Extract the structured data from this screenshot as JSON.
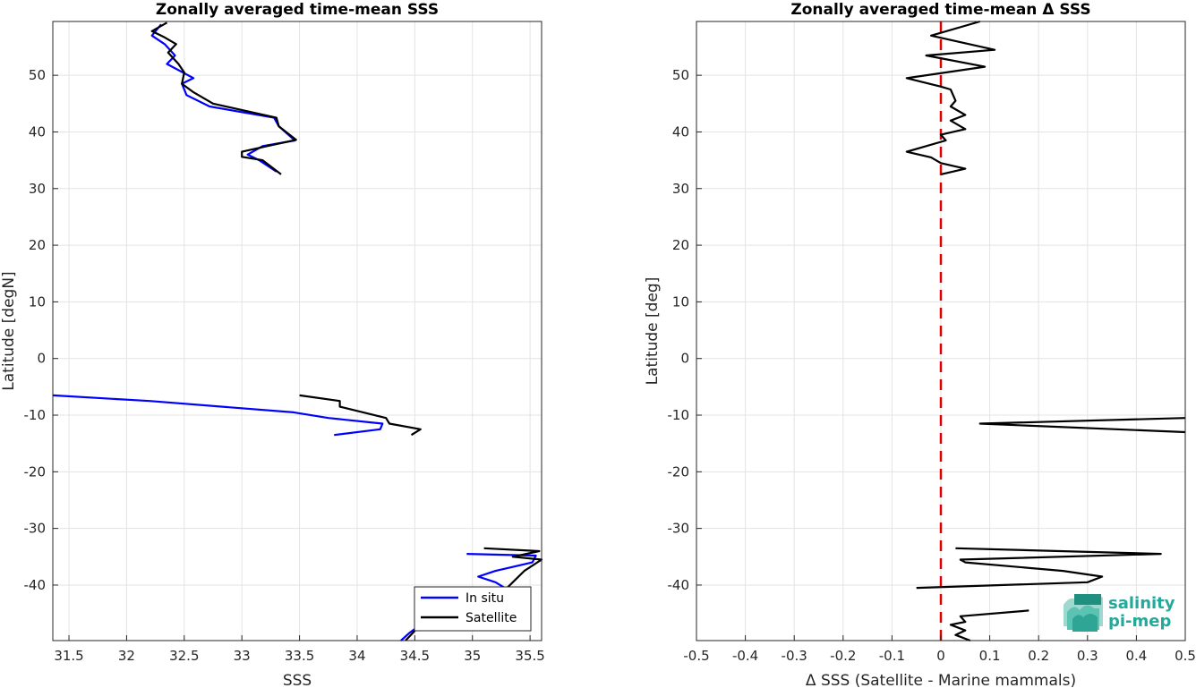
{
  "chart_data": [
    {
      "type": "line",
      "title": "Zonally averaged time-mean SSS",
      "xlabel": "SSS",
      "ylabel": "Latitude [degN]",
      "xlim": [
        31.36,
        35.6
      ],
      "ylim": [
        -49.8,
        59.5
      ],
      "xticks": [
        31.5,
        32,
        32.5,
        33,
        33.5,
        34,
        34.5,
        35,
        35.5
      ],
      "xtick_labels": [
        "31.5",
        "32",
        "32.5",
        "33",
        "33.5",
        "34",
        "34.5",
        "35",
        "35.5"
      ],
      "yticks": [
        -40,
        -30,
        -20,
        -10,
        0,
        10,
        20,
        30,
        40,
        50
      ],
      "ytick_labels": [
        "-40",
        "-30",
        "-20",
        "-10",
        "0",
        "10",
        "20",
        "30",
        "40",
        "50"
      ],
      "grid": true,
      "legend_position": "bottom-right",
      "series": [
        {
          "name": "In situ",
          "color": "#0000ff",
          "segments": [
            [
              [
                32.3,
                59.0
              ],
              [
                32.22,
                57.0
              ],
              [
                32.33,
                55.5
              ],
              [
                32.42,
                53.5
              ],
              [
                32.35,
                52.0
              ],
              [
                32.58,
                49.5
              ],
              [
                32.48,
                48.5
              ],
              [
                32.52,
                46.5
              ],
              [
                32.72,
                44.5
              ],
              [
                33.28,
                42.5
              ],
              [
                33.32,
                41.0
              ],
              [
                33.46,
                38.5
              ],
              [
                33.18,
                37.5
              ],
              [
                33.05,
                36.0
              ],
              [
                33.15,
                35.0
              ],
              [
                33.3,
                33.0
              ]
            ],
            [
              [
                31.36,
                -6.5
              ],
              [
                32.2,
                -7.5
              ],
              [
                33.45,
                -9.5
              ],
              [
                33.75,
                -10.5
              ],
              [
                34.22,
                -11.5
              ],
              [
                34.2,
                -12.5
              ],
              [
                33.8,
                -13.5
              ]
            ],
            [
              [
                34.95,
                -34.5
              ],
              [
                35.55,
                -34.8
              ],
              [
                35.52,
                -36.0
              ],
              [
                35.2,
                -37.5
              ],
              [
                35.05,
                -38.5
              ],
              [
                35.2,
                -39.5
              ],
              [
                35.28,
                -40.5
              ]
            ],
            [
              [
                34.55,
                -47.0
              ],
              [
                34.45,
                -48.5
              ],
              [
                34.38,
                -49.8
              ]
            ]
          ]
        },
        {
          "name": "Satellite",
          "color": "#000000",
          "segments": [
            [
              [
                32.35,
                59.3
              ],
              [
                32.22,
                57.8
              ],
              [
                32.32,
                56.8
              ],
              [
                32.43,
                55.5
              ],
              [
                32.36,
                54.0
              ],
              [
                32.45,
                52.0
              ],
              [
                32.5,
                50.5
              ],
              [
                32.48,
                48.5
              ],
              [
                32.58,
                47.0
              ],
              [
                32.75,
                45.0
              ],
              [
                33.3,
                42.5
              ],
              [
                33.32,
                41.0
              ],
              [
                33.47,
                38.6
              ],
              [
                33.22,
                37.5
              ],
              [
                33.0,
                36.5
              ],
              [
                33.0,
                35.6
              ],
              [
                33.18,
                35.0
              ],
              [
                33.34,
                32.5
              ]
            ],
            [
              [
                33.5,
                -6.5
              ],
              [
                33.85,
                -7.5
              ],
              [
                33.85,
                -8.5
              ],
              [
                34.25,
                -10.5
              ],
              [
                34.28,
                -11.5
              ],
              [
                34.55,
                -12.5
              ],
              [
                34.47,
                -13.5
              ]
            ],
            [
              [
                35.1,
                -33.5
              ],
              [
                35.58,
                -34.0
              ],
              [
                35.35,
                -35.0
              ],
              [
                35.6,
                -35.5
              ],
              [
                35.45,
                -37.5
              ],
              [
                35.35,
                -39.5
              ],
              [
                35.3,
                -40.5
              ]
            ],
            [
              [
                34.55,
                -47.0
              ],
              [
                34.48,
                -48.5
              ],
              [
                34.42,
                -49.8
              ]
            ]
          ]
        }
      ]
    },
    {
      "type": "line",
      "title": "Zonally averaged time-mean Δ SSS",
      "xlabel": "Δ SSS (Satellite - Marine mammals)",
      "ylabel": "Latitude [deg]",
      "xlim": [
        -0.5,
        0.5
      ],
      "ylim": [
        -49.8,
        59.5
      ],
      "xticks": [
        -0.5,
        -0.4,
        -0.3,
        -0.2,
        -0.1,
        0,
        0.1,
        0.2,
        0.3,
        0.4,
        0.5
      ],
      "xtick_labels": [
        "-0.5",
        "-0.4",
        "-0.3",
        "-0.2",
        "-0.1",
        "0",
        "0.1",
        "0.2",
        "0.3",
        "0.4",
        "0.5"
      ],
      "yticks": [
        -40,
        -30,
        -20,
        -10,
        0,
        10,
        20,
        30,
        40,
        50
      ],
      "ytick_labels": [
        "-40",
        "-30",
        "-20",
        "-10",
        "0",
        "10",
        "20",
        "30",
        "40",
        "50"
      ],
      "grid": true,
      "reference_line": {
        "x": 0,
        "color": "#e00000",
        "style": "dashed"
      },
      "series": [
        {
          "color": "#000000",
          "segments": [
            [
              [
                0.08,
                59.5
              ],
              [
                -0.02,
                57.0
              ],
              [
                0.11,
                54.5
              ],
              [
                -0.03,
                53.5
              ],
              [
                0.09,
                51.5
              ],
              [
                -0.07,
                49.5
              ],
              [
                0.0,
                48.0
              ],
              [
                0.02,
                47.5
              ],
              [
                0.03,
                45.5
              ],
              [
                0.02,
                44.5
              ],
              [
                0.05,
                43.0
              ],
              [
                0.02,
                42.0
              ],
              [
                0.05,
                40.5
              ],
              [
                0.0,
                39.5
              ],
              [
                0.01,
                38.5
              ],
              [
                -0.07,
                36.5
              ],
              [
                -0.02,
                35.5
              ],
              [
                0.0,
                34.5
              ],
              [
                0.05,
                33.5
              ],
              [
                0.0,
                32.5
              ]
            ],
            [
              [
                0.5,
                -10.5
              ],
              [
                0.08,
                -11.5
              ],
              [
                0.5,
                -13.0
              ]
            ],
            [
              [
                0.03,
                -33.5
              ],
              [
                0.45,
                -34.5
              ],
              [
                0.04,
                -35.5
              ],
              [
                0.05,
                -36.0
              ],
              [
                0.25,
                -37.5
              ],
              [
                0.33,
                -38.5
              ],
              [
                0.3,
                -39.5
              ],
              [
                -0.05,
                -40.5
              ]
            ],
            [
              [
                0.18,
                -44.5
              ],
              [
                0.04,
                -45.5
              ],
              [
                0.05,
                -46.5
              ],
              [
                0.02,
                -47.0
              ],
              [
                0.05,
                -48.0
              ],
              [
                0.03,
                -48.8
              ],
              [
                0.06,
                -49.8
              ]
            ]
          ]
        }
      ]
    }
  ],
  "legend": {
    "entries": [
      "In situ",
      "Satellite"
    ]
  },
  "logo": {
    "line1": "salinity",
    "line2": "pi-mep"
  }
}
